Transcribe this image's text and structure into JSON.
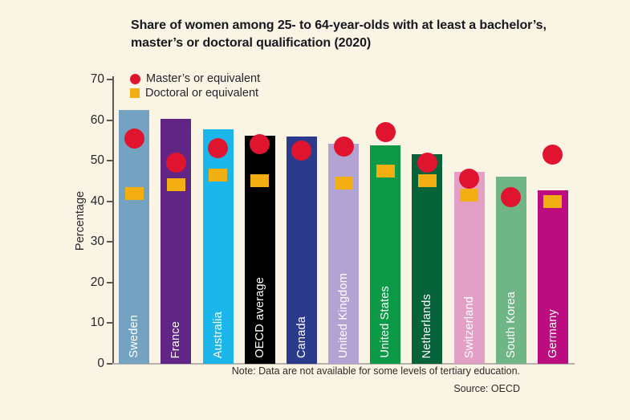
{
  "title": {
    "line1": "Share of women among 25- to 64-year-olds with at least a bachelor’s,",
    "line2": "master’s or doctoral qualification (2020)"
  },
  "chart_data": {
    "type": "bar",
    "title": "Share of women among 25- to 64-year-olds with at least a bachelor’s, master’s or doctoral qualification (2020)",
    "ylabel": "Percentage",
    "xlabel": "",
    "ylim": [
      0,
      70
    ],
    "yticks": [
      0,
      10,
      20,
      30,
      40,
      50,
      60,
      70
    ],
    "grid": false,
    "legend_position": "top-left",
    "categories": [
      "Sweden",
      "France",
      "Australia",
      "OECD average",
      "Canada",
      "United Kingdom",
      "United States",
      "Netherlands",
      "Switzerland",
      "South Korea",
      "Germany"
    ],
    "bars": {
      "name": "At least a bachelor’s, master’s or doctoral qualification",
      "values": [
        62.5,
        60.3,
        57.8,
        56.2,
        55.9,
        54.2,
        53.8,
        51.6,
        47.3,
        46.0,
        42.7
      ],
      "colors": [
        "#73A3C0",
        "#602585",
        "#1BB7EA",
        "#000000",
        "#2B3A8B",
        "#B3A3D2",
        "#0D9A47",
        "#06633A",
        "#E2A0C6",
        "#6FB586",
        "#BB0D80"
      ]
    },
    "series": [
      {
        "name": "Master’s or equivalent",
        "marker": "circle",
        "color": "#E1142F",
        "values": [
          55.5,
          49.5,
          53.0,
          54.0,
          52.5,
          53.5,
          57.0,
          49.5,
          45.5,
          41.0,
          51.5
        ]
      },
      {
        "name": "Doctoral or equivalent",
        "marker": "square",
        "color": "#F3AE12",
        "values": [
          42.0,
          44.0,
          46.5,
          45.0,
          null,
          44.5,
          47.5,
          45.0,
          41.5,
          null,
          40.0
        ]
      }
    ],
    "note": "Note: Data are not available for some levels of tertiary education.",
    "source": "Source: OECD"
  }
}
